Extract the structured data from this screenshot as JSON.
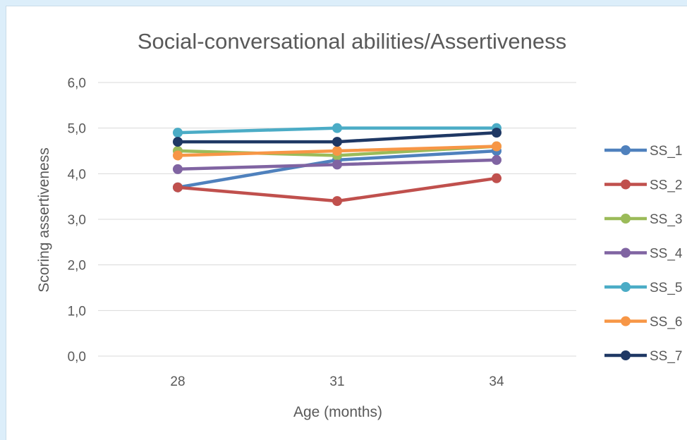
{
  "chart_data": {
    "type": "line",
    "title": "Social-conversational abilities/Assertiveness",
    "xlabel": "Age (months)",
    "ylabel": "Scoring assertiveness",
    "categories": [
      "28",
      "31",
      "34"
    ],
    "y_ticks": [
      "0,0",
      "1,0",
      "2,0",
      "3,0",
      "4,0",
      "5,0",
      "6,0"
    ],
    "ylim": [
      0,
      6
    ],
    "grid": true,
    "legend_position": "right",
    "series": [
      {
        "name": "SS_1",
        "color": "#4f81bd",
        "values": [
          3.7,
          4.3,
          4.5
        ]
      },
      {
        "name": "SS_2",
        "color": "#c0504d",
        "values": [
          3.7,
          3.4,
          3.9
        ]
      },
      {
        "name": "SS_3",
        "color": "#9bbb59",
        "values": [
          4.5,
          4.4,
          4.6
        ]
      },
      {
        "name": "SS_4",
        "color": "#8064a2",
        "values": [
          4.1,
          4.2,
          4.3
        ]
      },
      {
        "name": "SS_5",
        "color": "#4bacc6",
        "values": [
          4.9,
          5.0,
          5.0
        ]
      },
      {
        "name": "SS_6",
        "color": "#f79646",
        "values": [
          4.4,
          4.5,
          4.6
        ]
      },
      {
        "name": "SS_7",
        "color": "#1f3864",
        "values": [
          4.7,
          4.7,
          4.9
        ]
      }
    ]
  }
}
